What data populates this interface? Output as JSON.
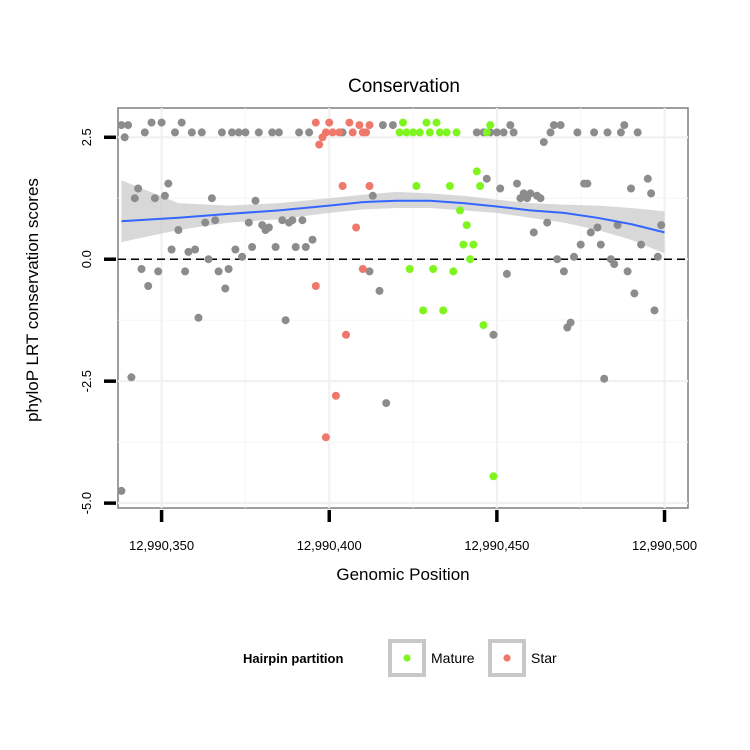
{
  "chart_data": {
    "type": "scatter",
    "title": "Conservation",
    "xlabel": "Genomic Position",
    "ylabel": "phyloP LRT conservation scores",
    "xlim": [
      12990337,
      12990507
    ],
    "ylim": [
      -5.1,
      3.1
    ],
    "x_ticks": [
      {
        "value": 12990350,
        "label": "12,990,350"
      },
      {
        "value": 12990400,
        "label": "12,990,400"
      },
      {
        "value": 12990450,
        "label": "12,990,450"
      },
      {
        "value": 12990500,
        "label": "12,990,500"
      }
    ],
    "y_ticks": [
      {
        "value": 2.5,
        "label": "2.5"
      },
      {
        "value": 0,
        "label": "0.0"
      },
      {
        "value": -2.5,
        "label": "-2.5"
      },
      {
        "value": -5,
        "label": "-5.0"
      }
    ],
    "grid": true,
    "reference_line": {
      "y": 0,
      "style": "dashed"
    },
    "colors": {
      "other": "#8c8c8c",
      "Mature": "#7ff520",
      "Star": "#f0776b",
      "smooth": "#3366ff",
      "ribbon": "#c8c8c8"
    },
    "legend": {
      "title": "Hairpin partition",
      "placement": "bottom",
      "entries": [
        "Mature",
        "Star"
      ]
    },
    "series": [
      {
        "group": "other",
        "points": [
          [
            12990338,
            -4.75
          ],
          [
            12990338,
            2.75
          ],
          [
            12990339,
            2.5
          ],
          [
            12990340,
            2.75
          ],
          [
            12990341,
            -2.42
          ],
          [
            12990342,
            1.25
          ],
          [
            12990343,
            1.45
          ],
          [
            12990344,
            -0.2
          ],
          [
            12990345,
            2.6
          ],
          [
            12990346,
            -0.55
          ],
          [
            12990347,
            2.8
          ],
          [
            12990348,
            1.25
          ],
          [
            12990349,
            -0.25
          ],
          [
            12990350,
            2.8
          ],
          [
            12990351,
            1.3
          ],
          [
            12990352,
            1.55
          ],
          [
            12990353,
            0.2
          ],
          [
            12990354,
            2.6
          ],
          [
            12990355,
            0.6
          ],
          [
            12990356,
            2.8
          ],
          [
            12990357,
            -0.25
          ],
          [
            12990358,
            0.15
          ],
          [
            12990359,
            2.6
          ],
          [
            12990360,
            0.2
          ],
          [
            12990361,
            -1.2
          ],
          [
            12990362,
            2.6
          ],
          [
            12990363,
            0.75
          ],
          [
            12990364,
            0.0
          ],
          [
            12990365,
            1.25
          ],
          [
            12990366,
            0.8
          ],
          [
            12990367,
            -0.25
          ],
          [
            12990368,
            2.6
          ],
          [
            12990369,
            -0.6
          ],
          [
            12990370,
            -0.2
          ],
          [
            12990371,
            2.6
          ],
          [
            12990372,
            0.2
          ],
          [
            12990373,
            2.6
          ],
          [
            12990374,
            0.05
          ],
          [
            12990375,
            2.6
          ],
          [
            12990376,
            0.75
          ],
          [
            12990377,
            0.25
          ],
          [
            12990378,
            1.2
          ],
          [
            12990379,
            2.6
          ],
          [
            12990380,
            0.7
          ],
          [
            12990381,
            0.6
          ],
          [
            12990382,
            0.65
          ],
          [
            12990383,
            2.6
          ],
          [
            12990384,
            0.25
          ],
          [
            12990385,
            2.6
          ],
          [
            12990386,
            0.8
          ],
          [
            12990387,
            -1.25
          ],
          [
            12990388,
            0.75
          ],
          [
            12990389,
            0.8
          ],
          [
            12990390,
            0.25
          ],
          [
            12990391,
            2.6
          ],
          [
            12990392,
            0.8
          ],
          [
            12990393,
            0.25
          ],
          [
            12990394,
            2.6
          ],
          [
            12990395,
            0.4
          ],
          [
            12990404,
            2.6
          ],
          [
            12990412,
            -0.25
          ],
          [
            12990413,
            1.3
          ],
          [
            12990415,
            -0.65
          ],
          [
            12990416,
            2.75
          ],
          [
            12990417,
            -2.95
          ],
          [
            12990419,
            2.75
          ],
          [
            12990444,
            2.6
          ],
          [
            12990446,
            2.6
          ],
          [
            12990447,
            1.65
          ],
          [
            12990448,
            2.6
          ],
          [
            12990449,
            -1.55
          ],
          [
            12990450,
            2.6
          ],
          [
            12990451,
            1.45
          ],
          [
            12990452,
            2.6
          ],
          [
            12990453,
            -0.3
          ],
          [
            12990454,
            2.75
          ],
          [
            12990455,
            2.6
          ],
          [
            12990456,
            1.55
          ],
          [
            12990457,
            1.25
          ],
          [
            12990458,
            1.35
          ],
          [
            12990459,
            1.25
          ],
          [
            12990460,
            1.35
          ],
          [
            12990461,
            0.55
          ],
          [
            12990462,
            1.3
          ],
          [
            12990463,
            1.25
          ],
          [
            12990464,
            2.4
          ],
          [
            12990465,
            0.75
          ],
          [
            12990466,
            2.6
          ],
          [
            12990467,
            2.75
          ],
          [
            12990468,
            0.0
          ],
          [
            12990469,
            2.75
          ],
          [
            12990470,
            -0.25
          ],
          [
            12990471,
            -1.4
          ],
          [
            12990472,
            -1.3
          ],
          [
            12990473,
            0.05
          ],
          [
            12990474,
            2.6
          ],
          [
            12990475,
            0.3
          ],
          [
            12990476,
            1.55
          ],
          [
            12990477,
            1.55
          ],
          [
            12990478,
            0.55
          ],
          [
            12990479,
            2.6
          ],
          [
            12990480,
            0.65
          ],
          [
            12990481,
            0.3
          ],
          [
            12990482,
            -2.45
          ],
          [
            12990483,
            2.6
          ],
          [
            12990484,
            0.0
          ],
          [
            12990485,
            -0.1
          ],
          [
            12990486,
            0.7
          ],
          [
            12990487,
            2.6
          ],
          [
            12990488,
            2.75
          ],
          [
            12990489,
            -0.25
          ],
          [
            12990490,
            1.45
          ],
          [
            12990491,
            -0.7
          ],
          [
            12990492,
            2.6
          ],
          [
            12990493,
            0.3
          ],
          [
            12990495,
            1.65
          ],
          [
            12990496,
            1.35
          ],
          [
            12990497,
            -1.05
          ],
          [
            12990498,
            0.05
          ],
          [
            12990499,
            0.7
          ]
        ]
      },
      {
        "group": "Mature",
        "points": [
          [
            12990421,
            2.6
          ],
          [
            12990422,
            2.8
          ],
          [
            12990423,
            2.6
          ],
          [
            12990424,
            -0.2
          ],
          [
            12990425,
            2.6
          ],
          [
            12990426,
            1.5
          ],
          [
            12990427,
            2.6
          ],
          [
            12990428,
            -1.05
          ],
          [
            12990429,
            2.8
          ],
          [
            12990430,
            2.6
          ],
          [
            12990431,
            -0.2
          ],
          [
            12990432,
            2.8
          ],
          [
            12990433,
            2.6
          ],
          [
            12990434,
            -1.05
          ],
          [
            12990435,
            2.6
          ],
          [
            12990436,
            1.5
          ],
          [
            12990437,
            -0.25
          ],
          [
            12990438,
            2.6
          ],
          [
            12990439,
            1.0
          ],
          [
            12990440,
            0.3
          ],
          [
            12990441,
            0.7
          ],
          [
            12990442,
            0.0
          ],
          [
            12990443,
            0.3
          ],
          [
            12990444,
            1.8
          ],
          [
            12990445,
            1.5
          ],
          [
            12990446,
            -1.35
          ],
          [
            12990447,
            2.6
          ],
          [
            12990448,
            2.75
          ],
          [
            12990449,
            -4.45
          ]
        ]
      },
      {
        "group": "Star",
        "points": [
          [
            12990396,
            2.8
          ],
          [
            12990396,
            -0.55
          ],
          [
            12990397,
            2.35
          ],
          [
            12990398,
            2.5
          ],
          [
            12990399,
            2.6
          ],
          [
            12990399,
            -3.65
          ],
          [
            12990400,
            2.8
          ],
          [
            12990401,
            2.6
          ],
          [
            12990402,
            -2.8
          ],
          [
            12990403,
            2.6
          ],
          [
            12990404,
            1.5
          ],
          [
            12990405,
            -1.55
          ],
          [
            12990406,
            2.8
          ],
          [
            12990407,
            2.6
          ],
          [
            12990408,
            0.65
          ],
          [
            12990409,
            2.75
          ],
          [
            12990410,
            2.6
          ],
          [
            12990410,
            -0.2
          ],
          [
            12990411,
            2.6
          ],
          [
            12990412,
            2.75
          ],
          [
            12990412,
            1.5
          ]
        ]
      }
    ],
    "smooth": {
      "x": [
        12990338,
        12990355,
        12990370,
        12990385,
        12990400,
        12990410,
        12990420,
        12990430,
        12990440,
        12990450,
        12990460,
        12990470,
        12990480,
        12990490,
        12990500
      ],
      "y": [
        0.78,
        0.85,
        0.93,
        1.0,
        1.1,
        1.17,
        1.2,
        1.2,
        1.15,
        1.08,
        1.0,
        0.95,
        0.85,
        0.72,
        0.55
      ],
      "lower": [
        0.35,
        0.6,
        0.75,
        0.82,
        0.95,
        1.02,
        1.05,
        1.05,
        1.0,
        0.95,
        0.85,
        0.75,
        0.6,
        0.4,
        0.12
      ],
      "upper": [
        1.62,
        1.15,
        1.1,
        1.15,
        1.25,
        1.32,
        1.38,
        1.35,
        1.3,
        1.22,
        1.15,
        1.12,
        1.1,
        1.05,
        0.98
      ]
    }
  }
}
